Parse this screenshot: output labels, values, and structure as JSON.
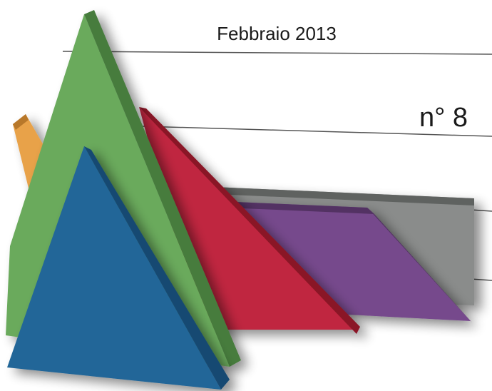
{
  "cover": {
    "date": "Febbraio 2013",
    "issue": "n° 8"
  }
}
